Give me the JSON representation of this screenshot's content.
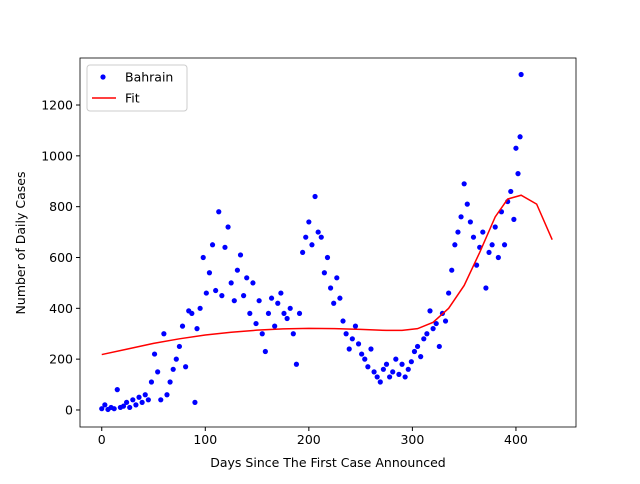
{
  "chart_data": {
    "type": "scatter-fit",
    "x_label": "Days Since The First Case Announced",
    "y_label": "Number of Daily Cases",
    "xlim": [
      -21,
      458
    ],
    "ylim": [
      -67,
      1385
    ],
    "xticks": [
      0,
      100,
      200,
      300,
      400
    ],
    "yticks": [
      0,
      200,
      400,
      600,
      800,
      1000,
      1200
    ],
    "legend": "upper left",
    "series": [
      {
        "name": "Bahrain",
        "color": "#0000ff",
        "kind": "points",
        "x": [
          0,
          3,
          6,
          9,
          12,
          15,
          18,
          21,
          24,
          27,
          30,
          33,
          36,
          39,
          42,
          45,
          48,
          51,
          54,
          57,
          60,
          63,
          66,
          69,
          72,
          75,
          78,
          81,
          84,
          87,
          90,
          92,
          95,
          98,
          101,
          104,
          107,
          110,
          113,
          116,
          119,
          122,
          125,
          128,
          131,
          134,
          137,
          140,
          143,
          146,
          149,
          152,
          155,
          158,
          161,
          164,
          167,
          170,
          173,
          176,
          179,
          182,
          185,
          188,
          191,
          194,
          197,
          200,
          203,
          206,
          209,
          212,
          215,
          218,
          221,
          224,
          227,
          230,
          233,
          236,
          239,
          242,
          245,
          248,
          251,
          254,
          257,
          260,
          263,
          266,
          269,
          272,
          275,
          278,
          281,
          284,
          287,
          290,
          293,
          296,
          299,
          302,
          305,
          308,
          311,
          314,
          317,
          320,
          323,
          326,
          329,
          332,
          335,
          338,
          341,
          344,
          347,
          350,
          353,
          356,
          359,
          362,
          365,
          368,
          371,
          374,
          377,
          380,
          383,
          386,
          389,
          392,
          395,
          398,
          400,
          402,
          404,
          405
        ],
        "values": [
          5,
          20,
          2,
          10,
          5,
          80,
          10,
          15,
          30,
          10,
          40,
          20,
          50,
          30,
          60,
          40,
          110,
          220,
          150,
          40,
          300,
          60,
          110,
          160,
          200,
          250,
          330,
          170,
          390,
          380,
          30,
          320,
          400,
          600,
          460,
          540,
          650,
          470,
          780,
          450,
          640,
          720,
          500,
          430,
          550,
          610,
          450,
          520,
          380,
          500,
          340,
          430,
          300,
          230,
          380,
          440,
          330,
          420,
          460,
          380,
          360,
          400,
          300,
          180,
          380,
          620,
          680,
          740,
          650,
          840,
          700,
          680,
          540,
          600,
          480,
          420,
          520,
          440,
          350,
          300,
          240,
          280,
          330,
          260,
          220,
          200,
          170,
          240,
          150,
          130,
          110,
          160,
          180,
          130,
          150,
          200,
          140,
          180,
          130,
          160,
          190,
          230,
          250,
          210,
          280,
          300,
          390,
          320,
          340,
          250,
          380,
          350,
          460,
          550,
          650,
          700,
          760,
          890,
          810,
          740,
          680,
          570,
          640,
          700,
          480,
          620,
          650,
          720,
          600,
          780,
          650,
          820,
          860,
          750,
          1030,
          930,
          1075,
          1320
        ]
      },
      {
        "name": "Fit",
        "color": "#ff0000",
        "kind": "line",
        "x": [
          0,
          25,
          50,
          75,
          100,
          125,
          150,
          175,
          200,
          225,
          250,
          275,
          290,
          305,
          320,
          335,
          350,
          365,
          380,
          392,
          405,
          420,
          435
        ],
        "values": [
          218,
          240,
          262,
          280,
          295,
          306,
          314,
          319,
          321,
          320,
          317,
          313,
          313,
          320,
          345,
          400,
          490,
          620,
          760,
          830,
          845,
          810,
          670
        ]
      }
    ]
  }
}
